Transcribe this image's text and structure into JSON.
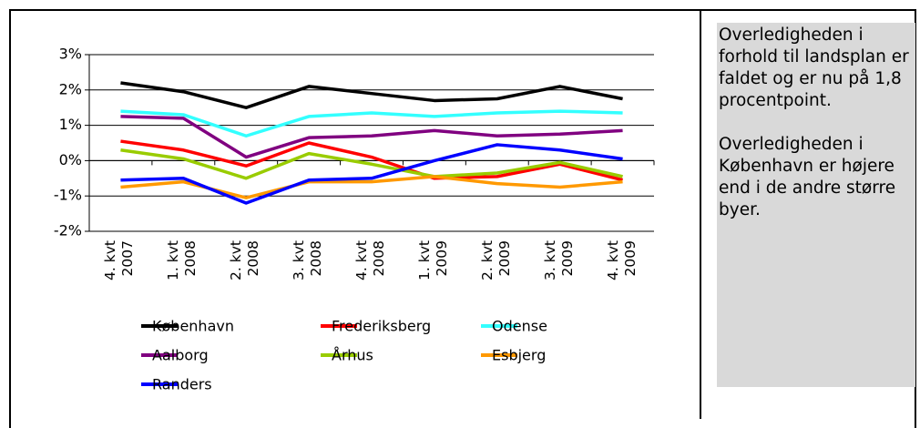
{
  "chart_data": {
    "type": "line",
    "categories": [
      "4. kvt 2007",
      "1. kvt 2008",
      "2. kvt 2008",
      "3. kvt 2008",
      "4. kvt 2008",
      "1. kvt 2009",
      "2. kvt 2009",
      "3. kvt 2009",
      "4. kvt 2009"
    ],
    "ylim": [
      -2,
      3
    ],
    "yticks": [
      {
        "value": -2,
        "label": "-2%"
      },
      {
        "value": -1,
        "label": "-1%"
      },
      {
        "value": 0,
        "label": "0%"
      },
      {
        "value": 1,
        "label": "1%"
      },
      {
        "value": 2,
        "label": "2%"
      },
      {
        "value": 3,
        "label": "3%"
      }
    ],
    "grid": true,
    "series": [
      {
        "name": "København",
        "color": "#000000",
        "values": [
          2.2,
          1.95,
          1.5,
          2.1,
          1.9,
          1.7,
          1.75,
          2.1,
          1.75
        ]
      },
      {
        "name": "Frederiksberg",
        "color": "#ff0000",
        "values": [
          0.55,
          0.3,
          -0.15,
          0.5,
          0.1,
          -0.5,
          -0.45,
          -0.1,
          -0.55
        ]
      },
      {
        "name": "Odense",
        "color": "#33ffff",
        "values": [
          1.4,
          1.3,
          0.7,
          1.25,
          1.35,
          1.25,
          1.35,
          1.4,
          1.35
        ]
      },
      {
        "name": "Aalborg",
        "color": "#800080",
        "values": [
          1.25,
          1.2,
          0.1,
          0.65,
          0.7,
          0.85,
          0.7,
          0.75,
          0.85
        ]
      },
      {
        "name": "Århus",
        "color": "#99cc00",
        "values": [
          0.3,
          0.05,
          -0.5,
          0.2,
          -0.1,
          -0.45,
          -0.35,
          -0.05,
          -0.45
        ]
      },
      {
        "name": "Esbjerg",
        "color": "#ff9900",
        "values": [
          -0.75,
          -0.6,
          -1.05,
          -0.6,
          -0.6,
          -0.45,
          -0.65,
          -0.75,
          -0.6
        ]
      },
      {
        "name": "Randers",
        "color": "#0000ff",
        "values": [
          -0.55,
          -0.5,
          -1.2,
          -0.55,
          -0.5,
          0,
          0.45,
          0.3,
          0.05
        ]
      }
    ]
  },
  "sidebar": {
    "paragraphs": [
      "Overledigheden i forhold til landsplan er faldet og er nu på 1,8 procentpoint.",
      "Overledigheden i København er højere end i de andre større byer."
    ]
  }
}
